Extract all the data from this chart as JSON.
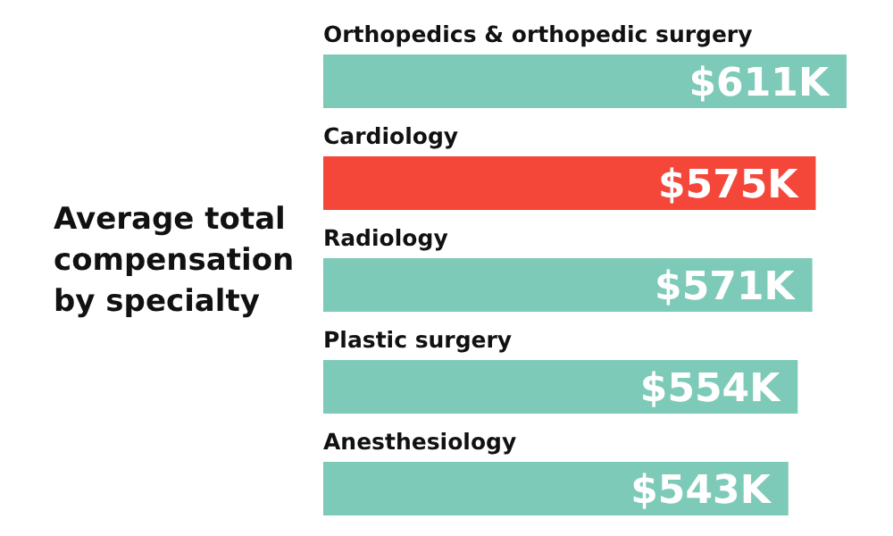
{
  "chart_data": {
    "type": "bar",
    "orientation": "horizontal",
    "title": "Average total compensation by specialty",
    "categories": [
      "Orthopedics & orthopedic surgery",
      "Cardiology",
      "Radiology",
      "Plastic surgery",
      "Anesthesiology"
    ],
    "values": [
      611,
      575,
      571,
      554,
      543
    ],
    "colors": [
      "#7ecab8",
      "#f4473a",
      "#7ecab8",
      "#7ecab8",
      "#7ecab8"
    ],
    "value_labels": [
      "$611K",
      "$575K",
      "$571K",
      "$554K",
      "$543K"
    ]
  }
}
